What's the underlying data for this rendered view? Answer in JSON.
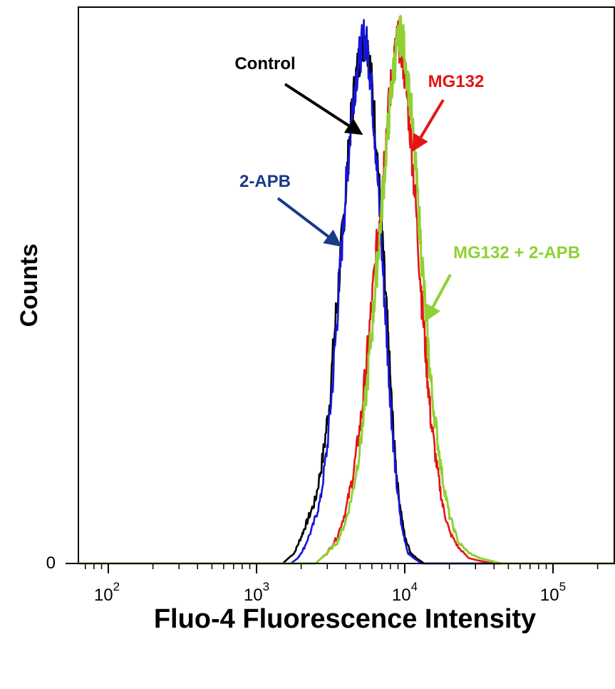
{
  "chart_data": {
    "type": "line",
    "title": "",
    "xlabel": "Fluo-4 Fluorescence Intensity",
    "ylabel": "Counts",
    "xscale": "log",
    "xlim": [
      60,
      300000
    ],
    "ylim": [
      0,
      100
    ],
    "x_ticks": [
      {
        "value": 100,
        "base": "10",
        "exp": "2"
      },
      {
        "value": 1000,
        "base": "10",
        "exp": "3"
      },
      {
        "value": 10000,
        "base": "10",
        "exp": "4"
      },
      {
        "value": 100000,
        "base": "10",
        "exp": "5"
      }
    ],
    "y_ticks": [
      {
        "value": 0,
        "label": "0"
      }
    ],
    "grid": false,
    "legend": "none (direct annotations with arrows)",
    "series": [
      {
        "name": "Control",
        "color": "#000000",
        "x": [
          1500,
          1800,
          2000,
          2200,
          2500,
          2800,
          3100,
          3400,
          3700,
          4000,
          4300,
          4600,
          5000,
          5400,
          5700,
          6000,
          6500,
          7000,
          7500,
          8000,
          8500,
          9000,
          10000,
          11000,
          12000,
          13500
        ],
        "y": [
          0,
          2,
          5,
          8,
          12,
          20,
          30,
          45,
          58,
          70,
          82,
          90,
          96,
          99,
          97,
          90,
          78,
          62,
          48,
          34,
          22,
          14,
          5,
          2,
          1,
          0
        ]
      },
      {
        "name": "2-APB",
        "color": "#1515d8",
        "x": [
          1700,
          1900,
          2100,
          2400,
          2700,
          3000,
          3300,
          3600,
          3900,
          4200,
          4500,
          4900,
          5300,
          5600,
          5900,
          6300,
          6800,
          7300,
          7800,
          8300,
          8800,
          9500,
          10500,
          11500,
          13000
        ],
        "y": [
          0,
          1,
          3,
          7,
          12,
          22,
          36,
          52,
          66,
          78,
          88,
          95,
          99,
          97,
          91,
          80,
          65,
          50,
          36,
          24,
          15,
          7,
          2,
          1,
          0
        ]
      },
      {
        "name": "MG132",
        "color": "#e41414",
        "x": [
          2500,
          3000,
          3500,
          4000,
          4500,
          5000,
          5500,
          6000,
          6500,
          7000,
          7500,
          8000,
          8500,
          9000,
          9500,
          10000,
          11000,
          12000,
          13000,
          14000,
          15000,
          16500,
          18000,
          20000,
          23000,
          27000,
          32000,
          40000
        ],
        "y": [
          0,
          2,
          5,
          10,
          17,
          26,
          37,
          49,
          60,
          71,
          81,
          89,
          95,
          99,
          97,
          92,
          80,
          65,
          50,
          38,
          27,
          18,
          11,
          6,
          3,
          1,
          0.5,
          0
        ]
      },
      {
        "name": "MG132 + 2-APB",
        "color": "#8fd133",
        "x": [
          2500,
          3000,
          3500,
          4000,
          4500,
          5000,
          5500,
          6000,
          6500,
          7000,
          7500,
          8000,
          8500,
          9000,
          9500,
          10000,
          11000,
          12000,
          13000,
          14000,
          15000,
          16500,
          18000,
          20000,
          23000,
          27000,
          32000,
          45000
        ],
        "y": [
          0,
          2,
          4,
          8,
          14,
          22,
          32,
          44,
          56,
          67,
          78,
          87,
          94,
          98,
          100,
          96,
          86,
          72,
          58,
          45,
          34,
          24,
          16,
          9,
          4,
          2,
          1,
          0
        ]
      }
    ],
    "annotations": [
      {
        "text": "Control",
        "color": "#000000",
        "target_x": 5000,
        "target_y": 81
      },
      {
        "text": "MG132",
        "color": "#e41414",
        "target_x": 11500,
        "target_y": 78
      },
      {
        "text": "2-APB",
        "color": "#1a3a8a",
        "target_x": 3600,
        "target_y": 60
      },
      {
        "text": "MG132 + 2-APB",
        "color": "#8fd133",
        "target_x": 14000,
        "target_y": 46
      }
    ]
  }
}
